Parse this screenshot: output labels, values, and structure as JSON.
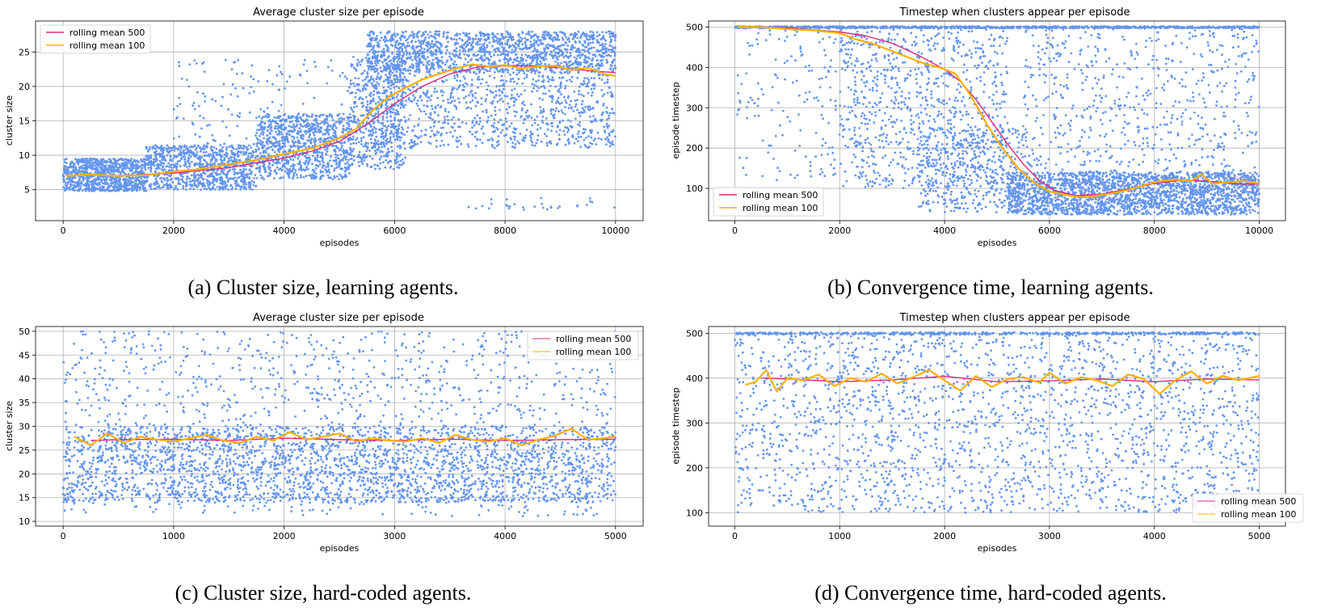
{
  "chart_data": [
    {
      "id": "a",
      "type": "scatter",
      "title": "Average cluster size per episode",
      "xlabel": "episodes",
      "ylabel": "cluster size",
      "xlim": [
        -500,
        10500
      ],
      "ylim": [
        0.5,
        29.5
      ],
      "xticks": [
        0,
        2000,
        4000,
        6000,
        8000,
        10000
      ],
      "yticks": [
        5,
        10,
        15,
        20,
        25
      ],
      "grid": true,
      "legend_position": "top-left",
      "caption": "(a) Cluster size, learning agents.",
      "scatter_color": "#6495ed",
      "series": [
        {
          "name": "rolling mean 500",
          "color": "#e0287a",
          "x": [
            250,
            1000,
            2000,
            3000,
            4000,
            4500,
            5000,
            5500,
            6000,
            6500,
            7000,
            7500,
            8000,
            8500,
            9000,
            9500,
            10000
          ],
          "y": [
            7.2,
            7.0,
            7.4,
            8.2,
            9.6,
            10.6,
            12.0,
            14.5,
            17.5,
            20.0,
            21.8,
            22.8,
            23.0,
            23.0,
            22.7,
            22.3,
            22.0
          ]
        },
        {
          "name": "rolling mean 100",
          "color": "#ffb000",
          "x": [
            50,
            500,
            1000,
            1500,
            2000,
            2500,
            3000,
            3500,
            4000,
            4500,
            5000,
            5300,
            5600,
            5900,
            6200,
            6500,
            6800,
            7100,
            7400,
            7700,
            8000,
            8300,
            8600,
            8900,
            9200,
            9500,
            9800,
            10000
          ],
          "y": [
            7.0,
            7.2,
            7.0,
            7.1,
            7.6,
            8.0,
            8.7,
            9.3,
            10.2,
            11.0,
            12.5,
            13.8,
            16.5,
            18.5,
            19.8,
            21.0,
            21.8,
            22.6,
            23.2,
            22.9,
            23.1,
            22.6,
            22.9,
            23.0,
            22.4,
            22.7,
            21.8,
            21.5
          ]
        }
      ],
      "scatter_bands": [
        {
          "x": [
            0,
            1500
          ],
          "y": [
            4.8,
            9.5
          ],
          "count": 900
        },
        {
          "x": [
            1500,
            3500
          ],
          "y": [
            5.0,
            11.5
          ],
          "count": 900
        },
        {
          "x": [
            3500,
            5200
          ],
          "y": [
            6.5,
            16.0
          ],
          "count": 900
        },
        {
          "x": [
            5200,
            6200
          ],
          "y": [
            8.0,
            24.5
          ],
          "count": 500
        },
        {
          "x": [
            5500,
            10000
          ],
          "y": [
            22.0,
            28.0
          ],
          "count": 1500
        },
        {
          "x": [
            5500,
            10000
          ],
          "y": [
            11.0,
            22.0
          ],
          "count": 900
        },
        {
          "x": [
            2000,
            6000
          ],
          "y": [
            11.0,
            24.0
          ],
          "count": 200
        },
        {
          "x": [
            7300,
            10000
          ],
          "y": [
            2.0,
            4.0
          ],
          "count": 30
        }
      ]
    },
    {
      "id": "b",
      "type": "scatter",
      "title": "Timestep when clusters appear per episode",
      "xlabel": "episodes",
      "ylabel": "episode timestep",
      "xlim": [
        -500,
        10500
      ],
      "ylim": [
        20,
        515
      ],
      "xticks": [
        0,
        2000,
        4000,
        6000,
        8000,
        10000
      ],
      "yticks": [
        100,
        200,
        300,
        400,
        500
      ],
      "grid": true,
      "legend_position": "bottom-left",
      "caption": "(b) Convergence time, learning agents.",
      "scatter_color": "#6495ed",
      "series": [
        {
          "name": "rolling mean 500",
          "color": "#e0287a",
          "x": [
            250,
            1000,
            2000,
            2500,
            3000,
            3500,
            4000,
            4300,
            4600,
            4900,
            5200,
            5500,
            5800,
            6100,
            6500,
            7000,
            7500,
            8000,
            8500,
            9000,
            9500,
            10000
          ],
          "y": [
            500,
            498,
            488,
            478,
            460,
            430,
            395,
            365,
            320,
            265,
            210,
            160,
            120,
            95,
            82,
            86,
            98,
            112,
            120,
            118,
            112,
            110
          ]
        },
        {
          "name": "rolling mean 100",
          "color": "#ffb000",
          "x": [
            50,
            500,
            1000,
            1500,
            2000,
            2300,
            2600,
            3000,
            3300,
            3600,
            3900,
            4200,
            4500,
            4800,
            5100,
            5400,
            5700,
            6000,
            6300,
            6600,
            6900,
            7200,
            7500,
            7800,
            8100,
            8400,
            8700,
            8900,
            9100,
            9400,
            9700,
            10000
          ],
          "y": [
            500,
            500,
            495,
            492,
            485,
            470,
            460,
            440,
            425,
            410,
            400,
            385,
            330,
            260,
            200,
            150,
            115,
            92,
            84,
            78,
            82,
            88,
            96,
            108,
            118,
            122,
            118,
            135,
            112,
            115,
            118,
            112
          ]
        }
      ],
      "scatter_bands": [
        {
          "x": [
            0,
            10000
          ],
          "y": [
            497,
            502
          ],
          "count": 900
        },
        {
          "x": [
            0,
            2000
          ],
          "y": [
            120,
            500
          ],
          "count": 150
        },
        {
          "x": [
            2000,
            5200
          ],
          "y": [
            100,
            500
          ],
          "count": 900
        },
        {
          "x": [
            3500,
            5500
          ],
          "y": [
            40,
            250
          ],
          "count": 400
        },
        {
          "x": [
            5200,
            10000
          ],
          "y": [
            35,
            140
          ],
          "count": 2200
        },
        {
          "x": [
            5500,
            10000
          ],
          "y": [
            100,
            500
          ],
          "count": 700
        }
      ]
    },
    {
      "id": "c",
      "type": "scatter",
      "title": "Average cluster size per episode",
      "xlabel": "episodes",
      "ylabel": "cluster size",
      "xlim": [
        -250,
        5250
      ],
      "ylim": [
        9,
        51
      ],
      "xticks": [
        0,
        1000,
        2000,
        3000,
        4000,
        5000
      ],
      "yticks": [
        10,
        15,
        20,
        25,
        30,
        35,
        40,
        45,
        50
      ],
      "grid": true,
      "legend_position": "top-right",
      "caption": "(c) Cluster size, hard-coded agents.",
      "scatter_color": "#6495ed",
      "series": [
        {
          "name": "rolling mean 500",
          "color": "#e0287a",
          "x": [
            250,
            500,
            1000,
            1500,
            2000,
            2500,
            3000,
            3500,
            4000,
            4500,
            5000
          ],
          "y": [
            27.0,
            27.2,
            27.3,
            27.0,
            27.5,
            27.2,
            27.0,
            27.3,
            27.0,
            27.2,
            27.3
          ]
        },
        {
          "name": "rolling mean 100",
          "color": "#ffb000",
          "x": [
            100,
            250,
            400,
            550,
            700,
            850,
            1000,
            1150,
            1300,
            1450,
            1600,
            1750,
            1900,
            2050,
            2200,
            2350,
            2500,
            2650,
            2800,
            2950,
            3100,
            3250,
            3400,
            3550,
            3700,
            3850,
            4000,
            4150,
            4300,
            4450,
            4600,
            4750,
            4900,
            5000
          ],
          "y": [
            27.8,
            26.0,
            28.5,
            26.5,
            27.8,
            27.2,
            26.8,
            27.5,
            28.2,
            27.0,
            26.5,
            27.8,
            27.0,
            28.8,
            27.2,
            27.8,
            28.5,
            26.8,
            27.5,
            27.0,
            26.8,
            27.5,
            26.5,
            28.2,
            27.2,
            26.8,
            27.5,
            26.0,
            27.2,
            28.0,
            29.5,
            27.2,
            27.5,
            27.8
          ]
        }
      ],
      "scatter_bands": [
        {
          "x": [
            0,
            5000
          ],
          "y": [
            14,
            30
          ],
          "count": 2800
        },
        {
          "x": [
            0,
            5000
          ],
          "y": [
            30,
            50
          ],
          "count": 700
        },
        {
          "x": [
            0,
            5000
          ],
          "y": [
            11,
            16
          ],
          "count": 150
        }
      ]
    },
    {
      "id": "d",
      "type": "scatter",
      "title": "Timestep when clusters appear per episode",
      "xlabel": "episodes",
      "ylabel": "episode timestep",
      "xlim": [
        -250,
        5250
      ],
      "ylim": [
        70,
        515
      ],
      "xticks": [
        0,
        1000,
        2000,
        3000,
        4000,
        5000
      ],
      "yticks": [
        100,
        200,
        300,
        400,
        500
      ],
      "grid": true,
      "legend_position": "bottom-right",
      "caption": "(d) Convergence time, hard-coded agents.",
      "scatter_color": "#6495ed",
      "series": [
        {
          "name": "rolling mean 500",
          "color": "#e0287a",
          "x": [
            250,
            500,
            1000,
            1500,
            2000,
            2500,
            3000,
            3500,
            4000,
            4500,
            5000
          ],
          "y": [
            400,
            398,
            392,
            396,
            404,
            392,
            394,
            398,
            392,
            398,
            396
          ]
        },
        {
          "name": "rolling mean 100",
          "color": "#ffb000",
          "x": [
            100,
            200,
            300,
            400,
            500,
            650,
            800,
            950,
            1100,
            1250,
            1400,
            1550,
            1700,
            1850,
            2000,
            2150,
            2300,
            2450,
            2600,
            2750,
            2900,
            3000,
            3150,
            3300,
            3450,
            3600,
            3750,
            3900,
            4050,
            4200,
            4350,
            4500,
            4650,
            4800,
            5000
          ],
          "y": [
            385,
            392,
            418,
            370,
            400,
            395,
            408,
            382,
            400,
            392,
            410,
            388,
            402,
            418,
            395,
            372,
            405,
            380,
            398,
            402,
            390,
            412,
            388,
            402,
            395,
            382,
            408,
            398,
            365,
            395,
            415,
            388,
            405,
            395,
            405
          ]
        }
      ],
      "scatter_bands": [
        {
          "x": [
            0,
            5000
          ],
          "y": [
            497,
            502
          ],
          "count": 500
        },
        {
          "x": [
            0,
            5000
          ],
          "y": [
            100,
            500
          ],
          "count": 2200
        }
      ]
    }
  ]
}
